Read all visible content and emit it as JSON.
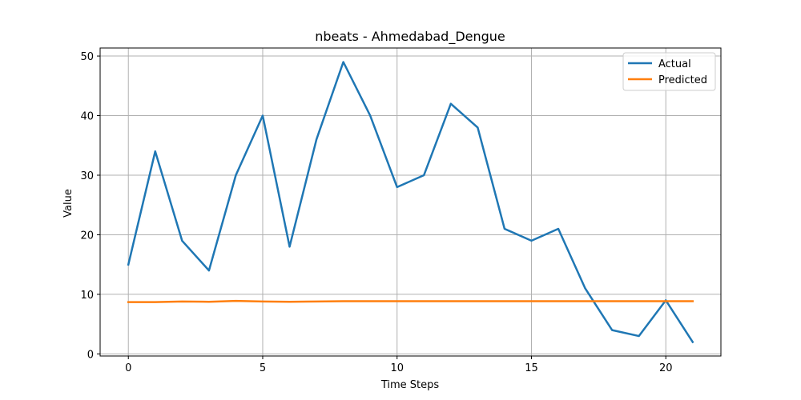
{
  "chart_data": {
    "type": "line",
    "title": "nbeats - Ahmedabad_Dengue",
    "xlabel": "Time Steps",
    "ylabel": "Value",
    "xlim": [
      -1.05,
      22.05
    ],
    "ylim": [
      -0.35,
      51.35
    ],
    "xticks": [
      0,
      5,
      10,
      15,
      20
    ],
    "yticks": [
      0,
      10,
      20,
      30,
      40,
      50
    ],
    "grid": true,
    "legend_position": "top-right",
    "x": [
      0,
      1,
      2,
      3,
      4,
      5,
      6,
      7,
      8,
      9,
      10,
      11,
      12,
      13,
      14,
      15,
      16,
      17,
      18,
      19,
      20,
      21
    ],
    "series": [
      {
        "name": "Actual",
        "color": "#1f77b4",
        "values": [
          15,
          34,
          19,
          14,
          30,
          40,
          18,
          36,
          49,
          40,
          28,
          30,
          42,
          38,
          21,
          19,
          21,
          11,
          4,
          3,
          9,
          2
        ]
      },
      {
        "name": "Predicted",
        "color": "#ff7f0e",
        "values": [
          8.7,
          8.7,
          8.8,
          8.75,
          8.9,
          8.8,
          8.75,
          8.8,
          8.85,
          8.85,
          8.85,
          8.85,
          8.85,
          8.85,
          8.85,
          8.85,
          8.85,
          8.85,
          8.85,
          8.85,
          8.85,
          8.85
        ]
      }
    ]
  }
}
